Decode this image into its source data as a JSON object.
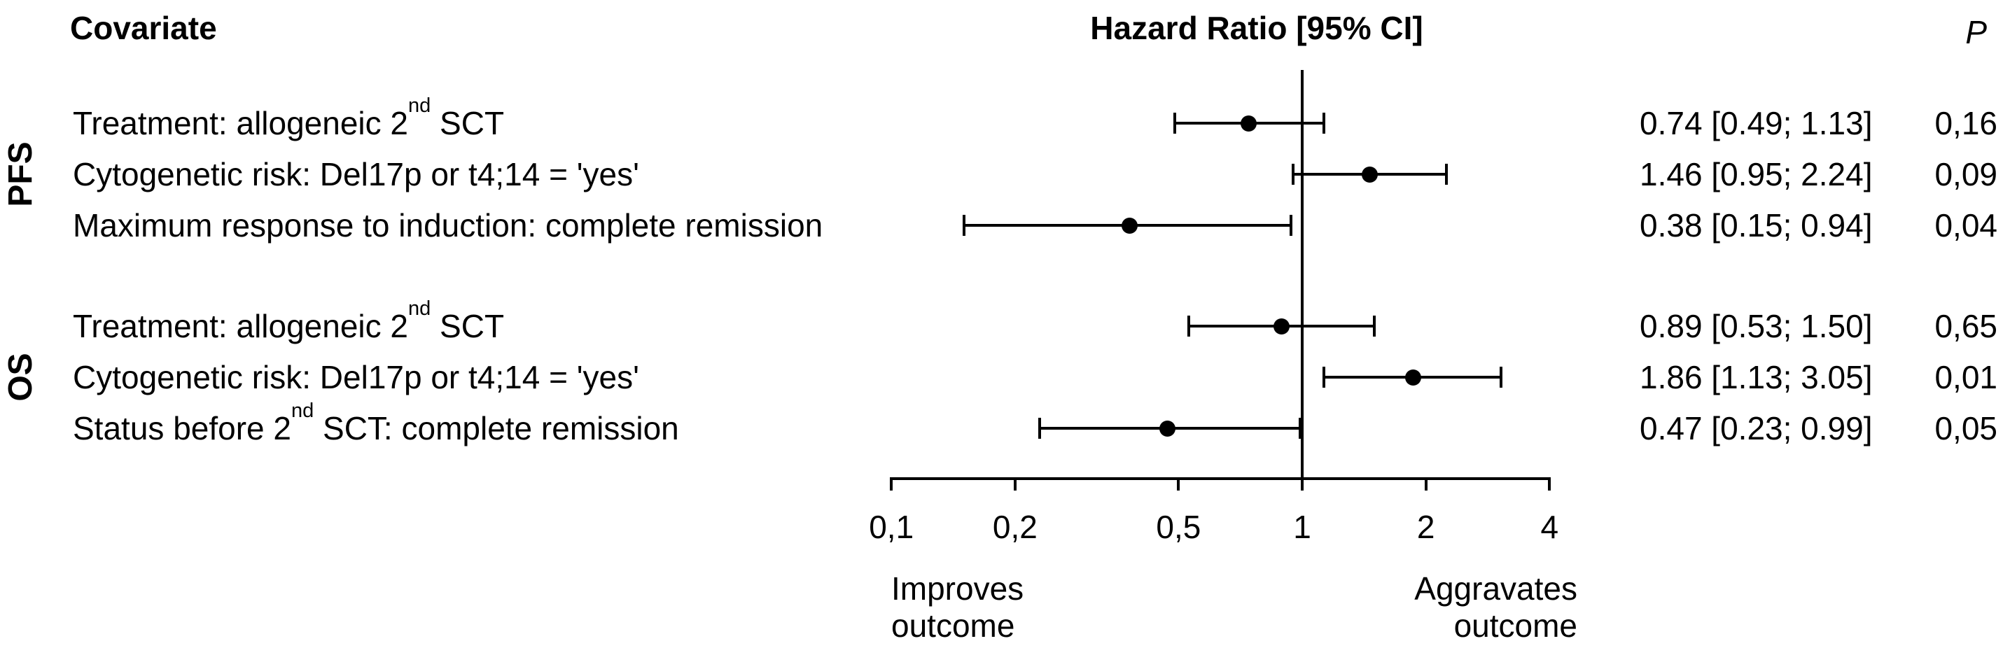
{
  "headers": {
    "covariate": "Covariate",
    "hazard_ratio": "Hazard Ratio [95% CI]",
    "p": "P"
  },
  "chart_data": {
    "type": "forest",
    "title": "Hazard Ratio [95% CI]",
    "x_axis": {
      "scale": "log",
      "range": [
        0.1,
        4
      ],
      "ticks": [
        0.1,
        0.2,
        0.5,
        1,
        2,
        4
      ],
      "tick_labels": [
        "0,1",
        "0,2",
        "0,5",
        "1",
        "2",
        "4"
      ],
      "reference_line": 1
    },
    "groups": [
      {
        "label": "PFS",
        "rows": [
          {
            "label_pre": "Treatment: allogeneic 2",
            "label_sup": "nd",
            "label_post": " SCT",
            "hr": 0.74,
            "ci_low": 0.49,
            "ci_high": 1.13,
            "hr_text": "0.74 [0.49; 1.13]",
            "p_text": "0,16"
          },
          {
            "label_pre": "Cytogenetic risk: Del17p or t4;14 = 'yes'",
            "label_sup": "",
            "label_post": "",
            "hr": 1.46,
            "ci_low": 0.95,
            "ci_high": 2.24,
            "hr_text": "1.46 [0.95; 2.24]",
            "p_text": "0,09"
          },
          {
            "label_pre": "Maximum response to induction: complete remission",
            "label_sup": "",
            "label_post": "",
            "hr": 0.38,
            "ci_low": 0.15,
            "ci_high": 0.94,
            "hr_text": "0.38 [0.15; 0.94]",
            "p_text": "0,04"
          }
        ]
      },
      {
        "label": "OS",
        "rows": [
          {
            "label_pre": "Treatment: allogeneic 2",
            "label_sup": "nd",
            "label_post": " SCT",
            "hr": 0.89,
            "ci_low": 0.53,
            "ci_high": 1.5,
            "hr_text": "0.89 [0.53; 1.50]",
            "p_text": "0,65"
          },
          {
            "label_pre": "Cytogenetic risk: Del17p or t4;14 = 'yes'",
            "label_sup": "",
            "label_post": "",
            "hr": 1.86,
            "ci_low": 1.13,
            "ci_high": 3.05,
            "hr_text": "1.86 [1.13; 3.05]",
            "p_text": "0,01"
          },
          {
            "label_pre": "Status before 2",
            "label_sup": "nd",
            "label_post": " SCT: complete remission",
            "hr": 0.47,
            "ci_low": 0.23,
            "ci_high": 0.99,
            "hr_text": "0.47 [0.23; 0.99]",
            "p_text": "0,05"
          }
        ]
      }
    ],
    "annotations": {
      "left": "Improves\noutcome",
      "right": "Aggravates\noutcome"
    },
    "colors": {
      "marker": "#000000",
      "line": "#000000",
      "text": "#000000",
      "background": "#ffffff"
    },
    "legend": null,
    "grid": false
  }
}
